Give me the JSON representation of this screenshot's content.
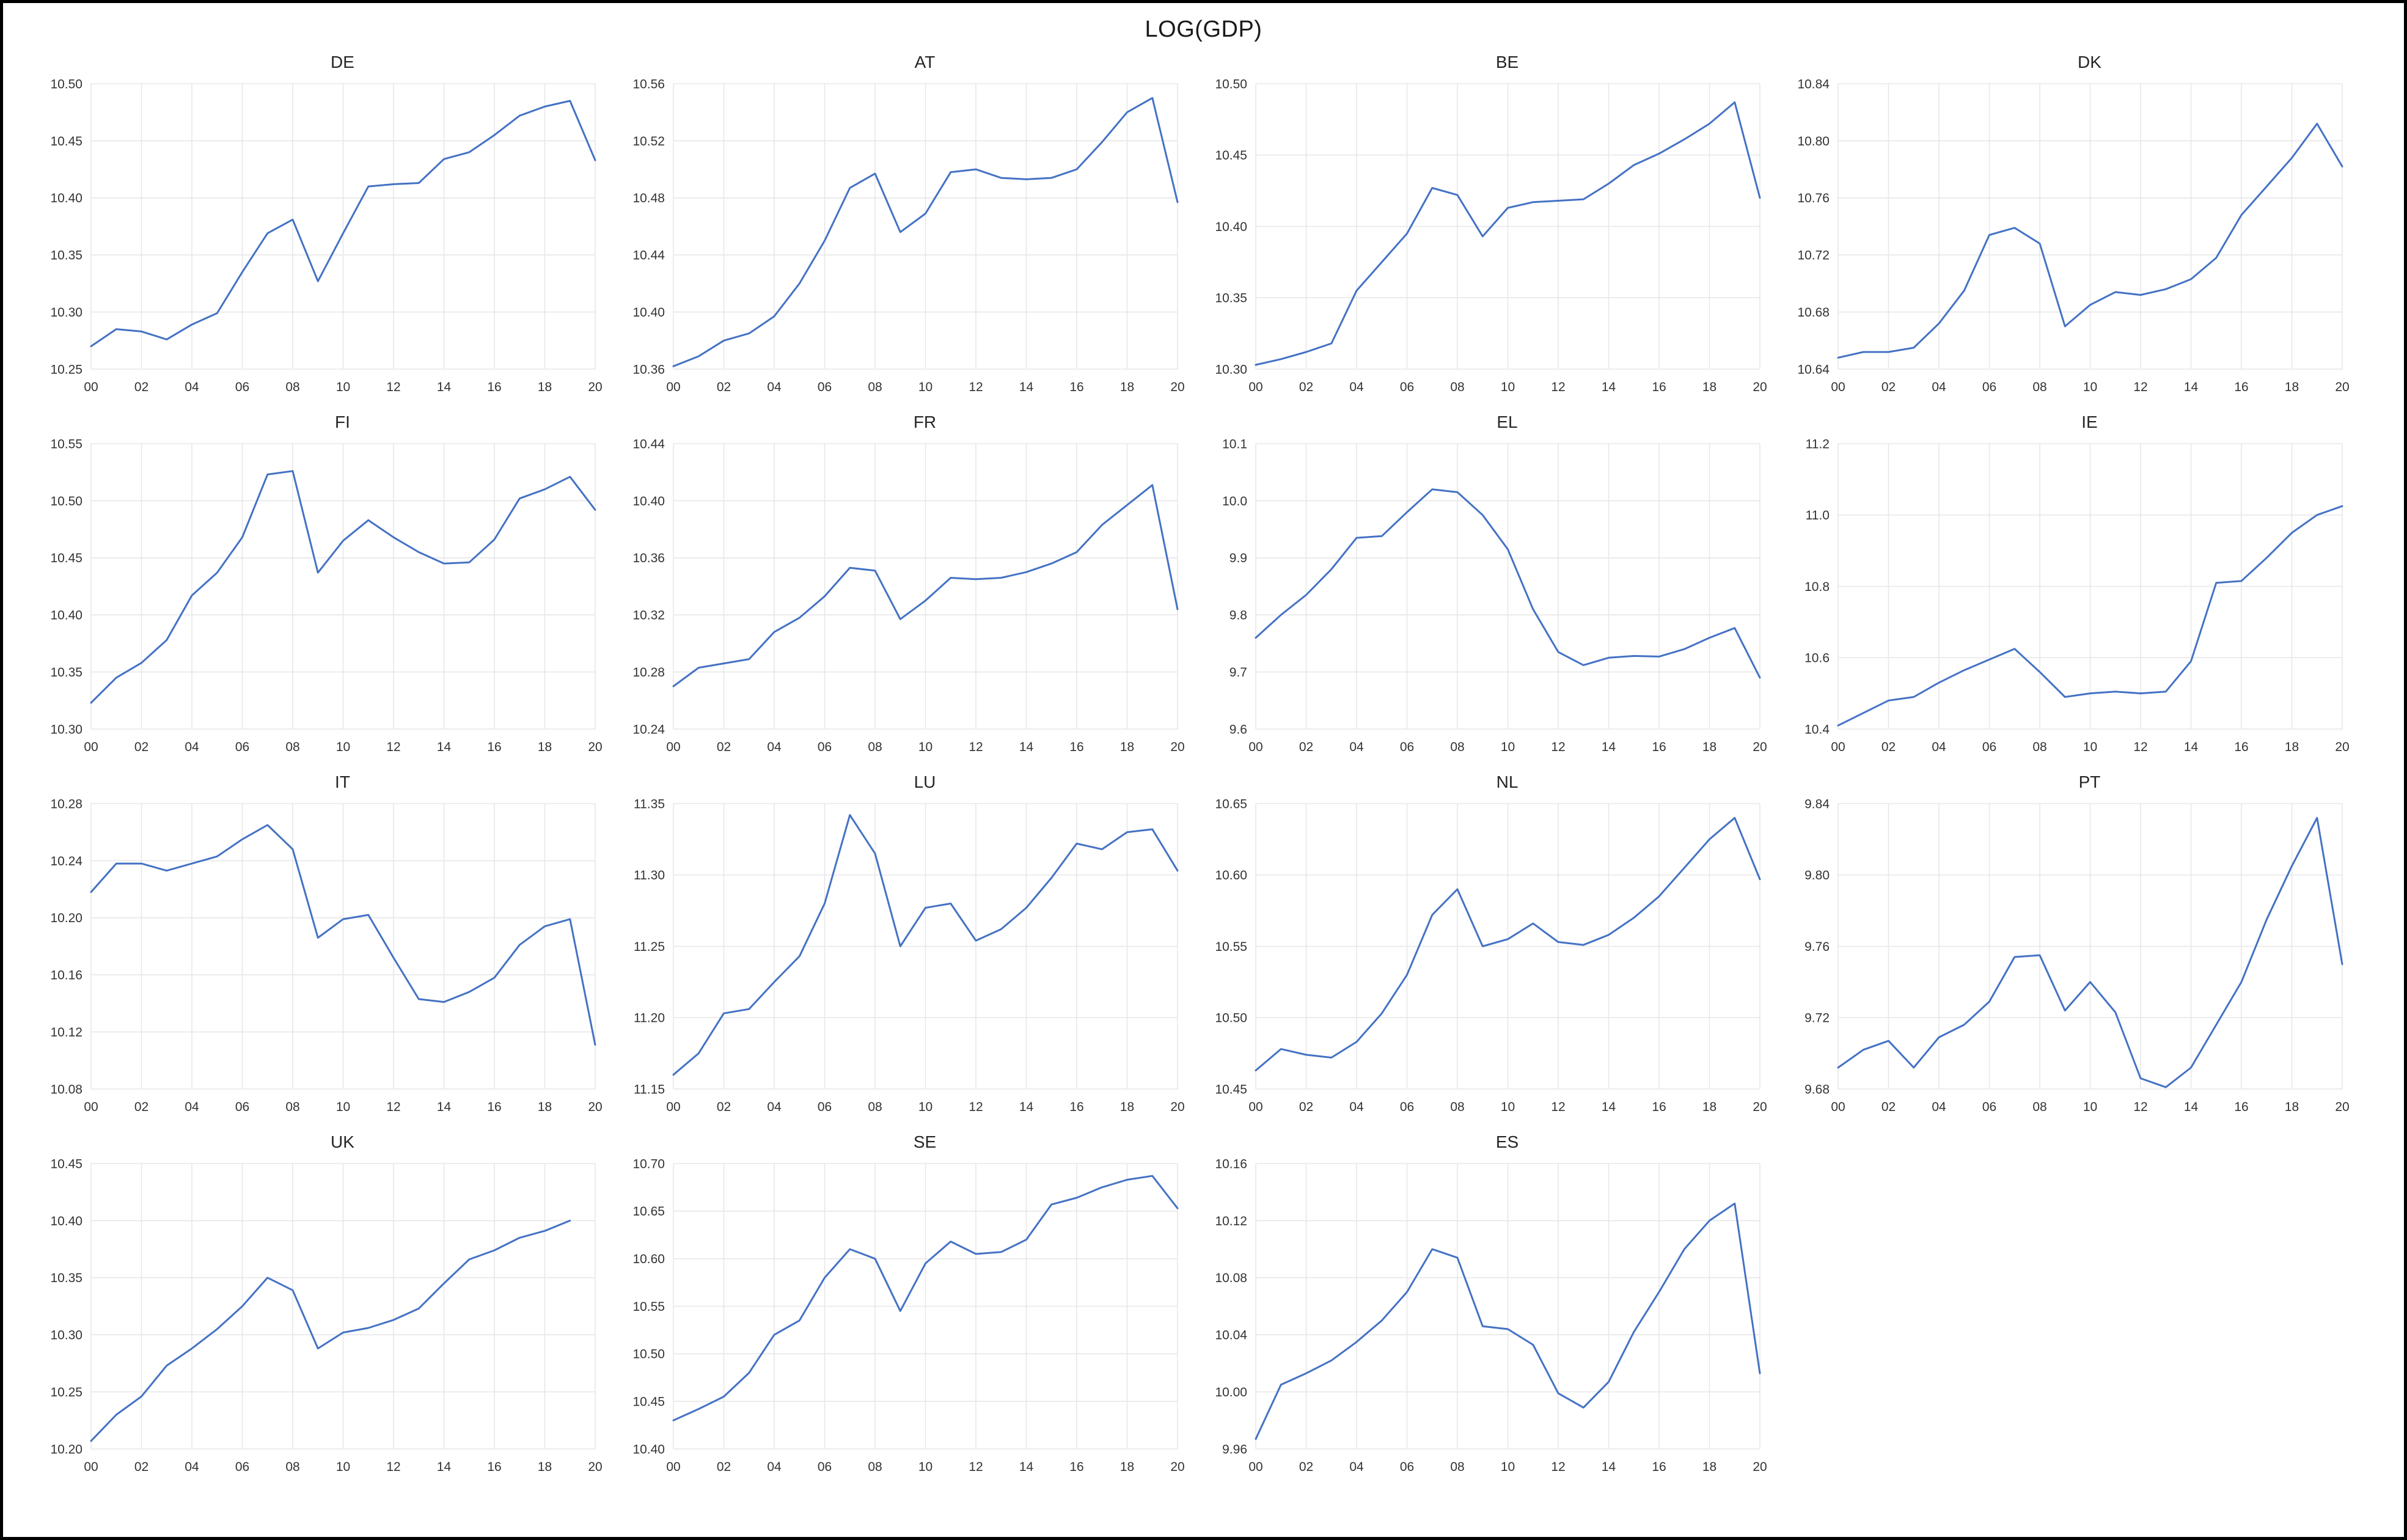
{
  "page": {
    "title": "LOG(GDP)"
  },
  "style": {
    "line_color": "#4472c4",
    "grid_color": "#e7e7e7",
    "tick_color": "#333333",
    "border_color": "#000000",
    "background_color": "#ffffff"
  },
  "axis": {
    "x_start_year": 2000,
    "x_end_year": 2020,
    "x_tick_labels": [
      "00",
      "02",
      "04",
      "06",
      "08",
      "10",
      "12",
      "14",
      "16",
      "18",
      "20"
    ]
  },
  "chart_data": [
    {
      "type": "line",
      "title": "DE",
      "ylim": [
        10.25,
        10.5
      ],
      "y_decimals": 2,
      "yticks": [
        10.25,
        10.3,
        10.35,
        10.4,
        10.45,
        10.5
      ],
      "values": [
        10.27,
        10.285,
        10.283,
        10.276,
        10.289,
        10.299,
        10.335,
        10.369,
        10.381,
        10.327,
        10.369,
        10.41,
        10.412,
        10.413,
        10.434,
        10.44,
        10.455,
        10.472,
        10.48,
        10.485,
        10.433
      ]
    },
    {
      "type": "line",
      "title": "AT",
      "ylim": [
        10.36,
        10.56
      ],
      "y_decimals": 2,
      "yticks": [
        10.36,
        10.4,
        10.44,
        10.48,
        10.52,
        10.56
      ],
      "values": [
        10.362,
        10.369,
        10.38,
        10.385,
        10.397,
        10.42,
        10.45,
        10.487,
        10.497,
        10.456,
        10.469,
        10.498,
        10.5,
        10.494,
        10.493,
        10.494,
        10.5,
        10.519,
        10.54,
        10.55,
        10.477
      ]
    },
    {
      "type": "line",
      "title": "BE",
      "ylim": [
        10.3,
        10.5
      ],
      "y_decimals": 2,
      "yticks": [
        10.3,
        10.35,
        10.4,
        10.45,
        10.5
      ],
      "values": [
        10.303,
        10.307,
        10.312,
        10.318,
        10.355,
        10.375,
        10.395,
        10.427,
        10.422,
        10.393,
        10.413,
        10.417,
        10.418,
        10.419,
        10.43,
        10.443,
        10.451,
        10.461,
        10.472,
        10.487,
        10.42
      ]
    },
    {
      "type": "line",
      "title": "DK",
      "ylim": [
        10.64,
        10.84
      ],
      "y_decimals": 2,
      "yticks": [
        10.64,
        10.68,
        10.72,
        10.76,
        10.8,
        10.84
      ],
      "values": [
        10.648,
        10.652,
        10.652,
        10.655,
        10.672,
        10.695,
        10.734,
        10.739,
        10.728,
        10.67,
        10.685,
        10.694,
        10.692,
        10.696,
        10.703,
        10.718,
        10.748,
        10.768,
        10.788,
        10.812,
        10.782
      ]
    },
    {
      "type": "line",
      "title": "FI",
      "ylim": [
        10.3,
        10.55
      ],
      "y_decimals": 2,
      "yticks": [
        10.3,
        10.35,
        10.4,
        10.45,
        10.5,
        10.55
      ],
      "values": [
        10.323,
        10.345,
        10.358,
        10.378,
        10.417,
        10.437,
        10.468,
        10.523,
        10.526,
        10.437,
        10.465,
        10.483,
        10.468,
        10.455,
        10.445,
        10.446,
        10.466,
        10.502,
        10.51,
        10.521,
        10.492
      ]
    },
    {
      "type": "line",
      "title": "FR",
      "ylim": [
        10.24,
        10.44
      ],
      "y_decimals": 2,
      "yticks": [
        10.24,
        10.28,
        10.32,
        10.36,
        10.4,
        10.44
      ],
      "values": [
        10.27,
        10.283,
        10.286,
        10.289,
        10.308,
        10.318,
        10.333,
        10.353,
        10.351,
        10.317,
        10.33,
        10.346,
        10.345,
        10.346,
        10.35,
        10.356,
        10.364,
        10.383,
        10.397,
        10.411,
        10.324
      ]
    },
    {
      "type": "line",
      "title": "EL",
      "ylim": [
        9.6,
        10.1
      ],
      "y_decimals": 1,
      "yticks": [
        9.6,
        9.7,
        9.8,
        9.9,
        10.0,
        10.1
      ],
      "values": [
        9.76,
        9.8,
        9.835,
        9.88,
        9.935,
        9.938,
        9.98,
        10.02,
        10.015,
        9.975,
        9.915,
        9.81,
        9.735,
        9.712,
        9.725,
        9.728,
        9.727,
        9.74,
        9.76,
        9.777,
        9.69
      ]
    },
    {
      "type": "line",
      "title": "IE",
      "ylim": [
        10.4,
        11.2
      ],
      "y_decimals": 1,
      "yticks": [
        10.4,
        10.6,
        10.8,
        11.0,
        11.2
      ],
      "values": [
        10.41,
        10.445,
        10.48,
        10.49,
        10.53,
        10.565,
        10.595,
        10.625,
        10.56,
        10.49,
        10.5,
        10.505,
        10.5,
        10.505,
        10.59,
        10.81,
        10.815,
        10.88,
        10.95,
        11.0,
        11.025
      ]
    },
    {
      "type": "line",
      "title": "IT",
      "ylim": [
        10.08,
        10.28
      ],
      "y_decimals": 2,
      "yticks": [
        10.08,
        10.12,
        10.16,
        10.2,
        10.24,
        10.28
      ],
      "values": [
        10.218,
        10.238,
        10.238,
        10.233,
        10.238,
        10.243,
        10.255,
        10.265,
        10.248,
        10.186,
        10.199,
        10.202,
        10.172,
        10.143,
        10.141,
        10.148,
        10.158,
        10.181,
        10.194,
        10.199,
        10.111
      ]
    },
    {
      "type": "line",
      "title": "LU",
      "ylim": [
        11.15,
        11.35
      ],
      "y_decimals": 2,
      "yticks": [
        11.15,
        11.2,
        11.25,
        11.3,
        11.35
      ],
      "values": [
        11.16,
        11.175,
        11.203,
        11.206,
        11.225,
        11.243,
        11.28,
        11.342,
        11.315,
        11.25,
        11.277,
        11.28,
        11.254,
        11.262,
        11.277,
        11.298,
        11.322,
        11.318,
        11.33,
        11.332,
        11.303
      ]
    },
    {
      "type": "line",
      "title": "NL",
      "ylim": [
        10.45,
        10.65
      ],
      "y_decimals": 2,
      "yticks": [
        10.45,
        10.5,
        10.55,
        10.6,
        10.65
      ],
      "values": [
        10.463,
        10.478,
        10.474,
        10.472,
        10.483,
        10.503,
        10.53,
        10.572,
        10.59,
        10.55,
        10.555,
        10.566,
        10.553,
        10.551,
        10.558,
        10.57,
        10.585,
        10.605,
        10.625,
        10.64,
        10.597
      ]
    },
    {
      "type": "line",
      "title": "PT",
      "ylim": [
        9.68,
        9.84
      ],
      "y_decimals": 2,
      "yticks": [
        9.68,
        9.72,
        9.76,
        9.8,
        9.84
      ],
      "values": [
        9.692,
        9.702,
        9.707,
        9.692,
        9.709,
        9.716,
        9.729,
        9.754,
        9.755,
        9.724,
        9.74,
        9.723,
        9.686,
        9.681,
        9.692,
        9.716,
        9.74,
        9.775,
        9.805,
        9.832,
        9.75
      ]
    },
    {
      "type": "line",
      "title": "UK",
      "ylim": [
        10.2,
        10.45
      ],
      "y_decimals": 2,
      "yticks": [
        10.2,
        10.25,
        10.3,
        10.35,
        10.4,
        10.45
      ],
      "values": [
        10.207,
        10.23,
        10.246,
        10.273,
        10.288,
        10.305,
        10.325,
        10.35,
        10.339,
        10.288,
        10.302,
        10.306,
        10.313,
        10.323,
        10.345,
        10.366,
        10.374,
        10.385,
        10.391,
        10.4
      ]
    },
    {
      "type": "line",
      "title": "SE",
      "ylim": [
        10.4,
        10.7
      ],
      "y_decimals": 2,
      "yticks": [
        10.4,
        10.45,
        10.5,
        10.55,
        10.6,
        10.65,
        10.7
      ],
      "values": [
        10.43,
        10.442,
        10.455,
        10.48,
        10.52,
        10.535,
        10.58,
        10.61,
        10.6,
        10.545,
        10.595,
        10.618,
        10.605,
        10.607,
        10.62,
        10.657,
        10.664,
        10.675,
        10.683,
        10.687,
        10.653
      ]
    },
    {
      "type": "line",
      "title": "ES",
      "ylim": [
        9.96,
        10.16
      ],
      "y_decimals": 2,
      "yticks": [
        9.96,
        10.0,
        10.04,
        10.08,
        10.12,
        10.16
      ],
      "values": [
        9.967,
        10.005,
        10.013,
        10.022,
        10.035,
        10.05,
        10.07,
        10.1,
        10.094,
        10.046,
        10.044,
        10.033,
        9.999,
        9.989,
        10.007,
        10.042,
        10.07,
        10.1,
        10.12,
        10.132,
        10.013
      ]
    }
  ]
}
